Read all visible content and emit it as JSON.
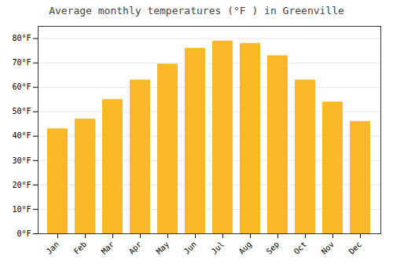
{
  "chart_data": {
    "type": "bar",
    "title": "Average monthly temperatures (°F ) in Greenville",
    "categories": [
      "Jan",
      "Feb",
      "Mar",
      "Apr",
      "May",
      "Jun",
      "Jul",
      "Aug",
      "Sep",
      "Oct",
      "Nov",
      "Dec"
    ],
    "values": [
      43,
      47,
      55,
      63,
      69.5,
      76,
      79,
      78,
      73,
      63,
      54,
      46
    ],
    "color": "#FDB827",
    "ylim": [
      0,
      85
    ],
    "yticks": [
      {
        "value": 0,
        "label": "0°F"
      },
      {
        "value": 10,
        "label": "10°F"
      },
      {
        "value": 20,
        "label": "20°F"
      },
      {
        "value": 30,
        "label": "30°F"
      },
      {
        "value": 40,
        "label": "40°F"
      },
      {
        "value": 50,
        "label": "50°F"
      },
      {
        "value": 60,
        "label": "60°F"
      },
      {
        "value": 70,
        "label": "70°F"
      },
      {
        "value": 80,
        "label": "80°F"
      }
    ],
    "grid": true
  }
}
